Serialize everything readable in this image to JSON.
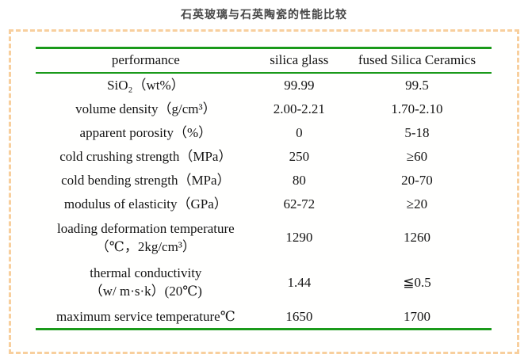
{
  "page": {
    "title": "石英玻璃与石英陶瓷的性能比较"
  },
  "colors": {
    "accent_green": "#1a9a1a",
    "dash_border": "#f8cf9d",
    "title_text": "#474747",
    "table_text": "#141414"
  },
  "table": {
    "columns": [
      "performance",
      "silica glass",
      "fused Silica Ceramics"
    ],
    "rows": [
      {
        "label": "SiO₂（wt%）",
        "silica_glass": "99.99",
        "fused_silica_ceramics": "99.5"
      },
      {
        "label": "volume density（g/cm³）",
        "silica_glass": "2.00-2.21",
        "fused_silica_ceramics": "1.70-2.10"
      },
      {
        "label": "apparent porosity（%）",
        "silica_glass": "0",
        "fused_silica_ceramics": "5-18"
      },
      {
        "label": "cold crushing strength（MPa）",
        "silica_glass": "250",
        "fused_silica_ceramics": "≥60"
      },
      {
        "label": "cold bending strength（MPa）",
        "silica_glass": "80",
        "fused_silica_ceramics": "20-70"
      },
      {
        "label": "modulus of elasticity（GPa）",
        "silica_glass": "62-72",
        "fused_silica_ceramics": "≥20"
      },
      {
        "label": "loading deformation temperature\n（℃，2kg/cm³）",
        "silica_glass": "1290",
        "fused_silica_ceramics": "1260"
      },
      {
        "label": "thermal conductivity\n（w/ m·s·k）(20℃)",
        "silica_glass": "1.44",
        "fused_silica_ceramics": "≦0.5"
      },
      {
        "label": "maximum service temperature℃",
        "silica_glass": "1650",
        "fused_silica_ceramics": "1700"
      }
    ]
  }
}
